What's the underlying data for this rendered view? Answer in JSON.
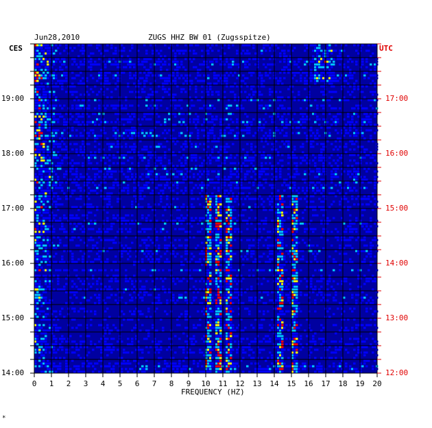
{
  "chart_data": {
    "type": "heatmap",
    "date": "Jun28,2010",
    "station": "ZUGS HHZ BW 01 (Zugsspitze)",
    "left_tz": "CES",
    "right_tz": "UTC",
    "xlabel": "FREQUENCY (HZ)",
    "xlim": [
      0,
      20
    ],
    "x_ticks": [
      "0",
      "1",
      "2",
      "3",
      "4",
      "5",
      "6",
      "7",
      "8",
      "9",
      "10",
      "11",
      "12",
      "13",
      "14",
      "15",
      "16",
      "17",
      "18",
      "19",
      "20"
    ],
    "left_time_ticks": [
      "19:00",
      "18:00",
      "17:00",
      "16:00",
      "15:00",
      "14:00"
    ],
    "right_time_ticks": [
      "17:00",
      "16:00",
      "15:00",
      "14:00",
      "13:00",
      "12:00"
    ],
    "time_range_cest": [
      "14:00",
      "19:50"
    ],
    "strong_bands_hz": [
      10.1,
      10.7,
      11.3,
      14.3,
      15.1
    ],
    "grid": true,
    "colors": {
      "background": "#0000a0",
      "low": "#0000ff",
      "mid": "#00c8ff",
      "high": "#ffff00",
      "peak": "#ff0000",
      "right_axis": "#e00000",
      "grid": "#000000"
    },
    "footnote": "*"
  }
}
